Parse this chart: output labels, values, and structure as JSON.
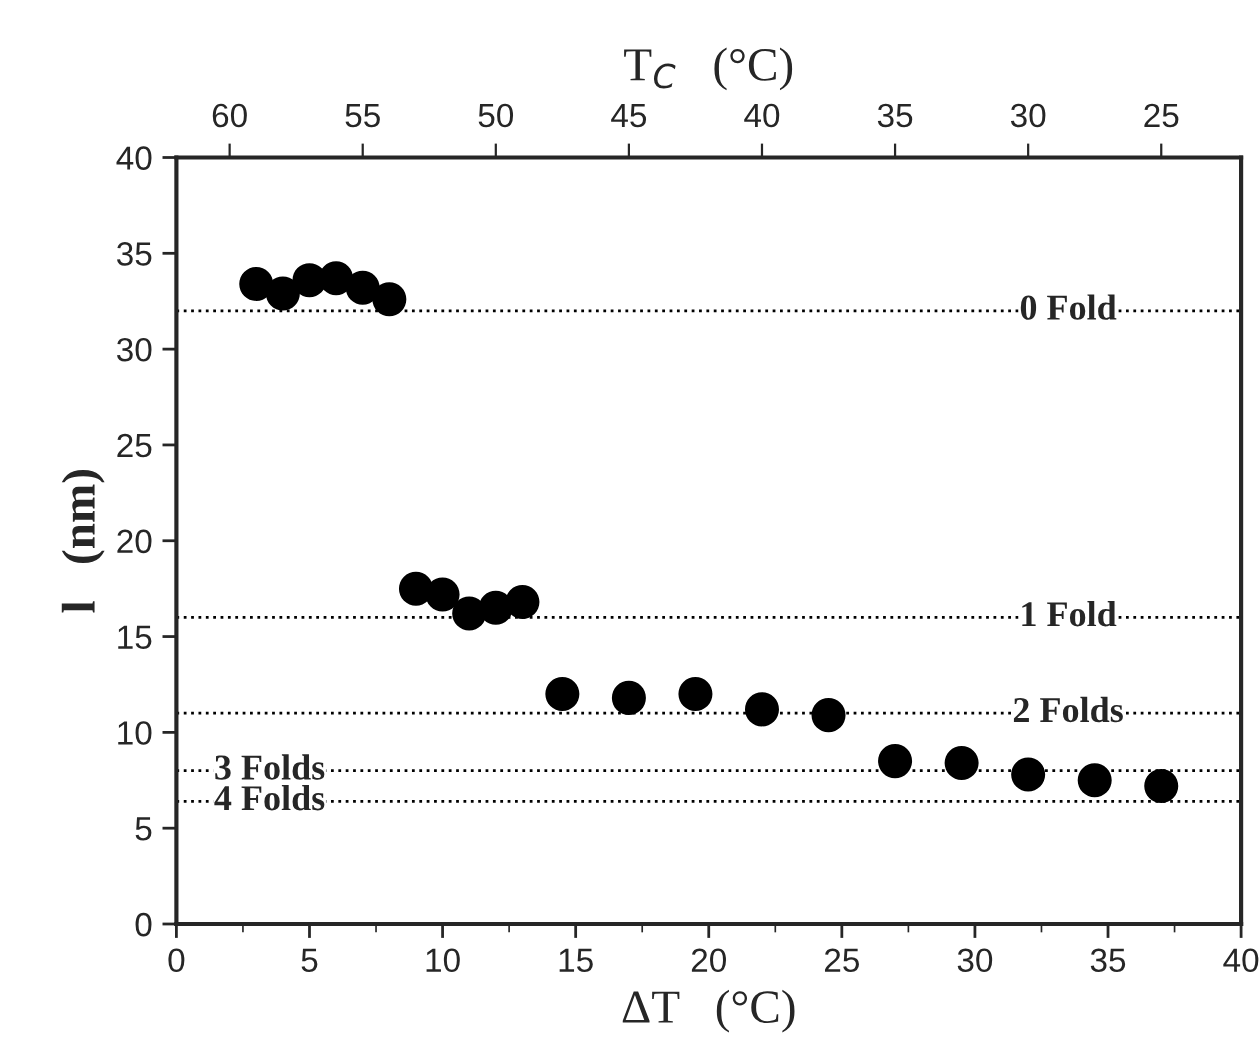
{
  "chart_data": {
    "type": "scatter",
    "xlabel": "ΔT   (°C)",
    "ylabel": "l   (nm)",
    "x2label": "T$_{C}$   (°C)",
    "x": [
      3,
      4,
      5,
      6,
      7,
      8,
      9,
      10,
      11,
      12,
      13,
      14.5,
      17,
      19.5,
      22,
      24.5,
      27,
      29.5,
      32,
      34.5,
      37
    ],
    "series": [
      {
        "color": "#000000",
        "values": [
          33.4,
          32.9,
          33.6,
          33.7,
          33.2,
          32.6,
          17.5,
          17.2,
          16.2,
          16.5,
          16.8,
          12.0,
          11.8,
          12.0,
          11.2,
          10.9,
          8.5,
          8.4,
          7.8,
          7.5,
          7.2
        ]
      }
    ],
    "marker": "circle",
    "xlim": [
      0,
      40
    ],
    "xticks": [
      0,
      5,
      10,
      15,
      20,
      25,
      30,
      35,
      40
    ],
    "ylim": [
      0,
      40
    ],
    "yticks": [
      0,
      5,
      10,
      15,
      20,
      25,
      30,
      35,
      40
    ],
    "x2lim": [
      62,
      22
    ],
    "x2ticks": [
      60,
      55,
      50,
      45,
      40,
      35,
      30,
      25
    ],
    "ref_lines": [
      {
        "axis": "y",
        "value": 32,
        "label": "0 Fold",
        "line_style": "dotted"
      },
      {
        "axis": "y",
        "value": 16,
        "label": "1 Fold",
        "line_style": "dotted"
      },
      {
        "axis": "y",
        "value": 11,
        "label": "2 Folds",
        "line_style": "dotted"
      },
      {
        "axis": "y",
        "value": 8,
        "label": "3 Folds",
        "line_style": "dotted"
      },
      {
        "axis": "y",
        "value": 6.4,
        "label": "4 Folds",
        "line_style": "dotted"
      }
    ],
    "grid": false
  }
}
